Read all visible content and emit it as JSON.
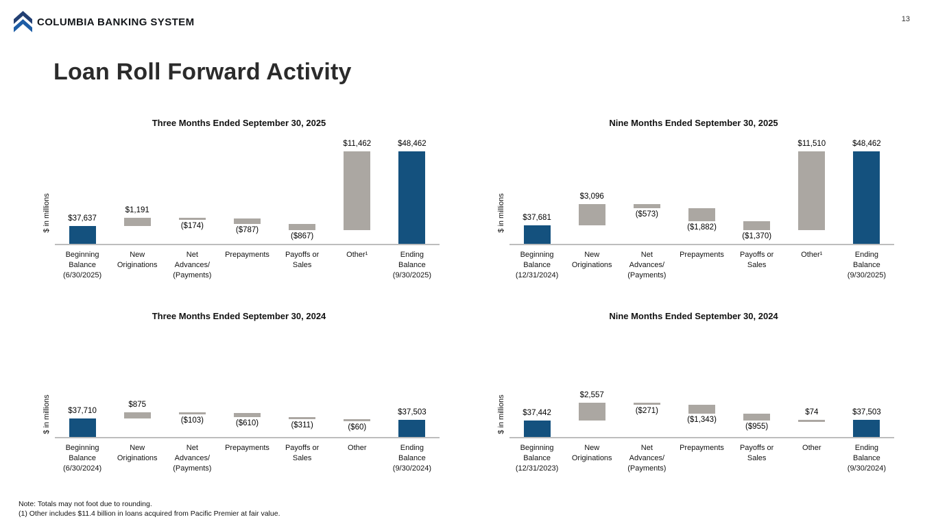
{
  "header": {
    "logo_text": "COLUMBIA BANKING SYSTEM",
    "page_number": "13"
  },
  "page_title": "Loan Roll Forward Activity",
  "colors": {
    "balance_bar": "#14517E",
    "flow_bar": "#ABA7A2",
    "axis_line": "#BDBDBD",
    "logo_top_chevron": "#223F73",
    "logo_bottom_chevron": "#1D5DA6"
  },
  "footnotes": {
    "line1": "Note: Totals may not foot due to rounding.",
    "line2": "(1)  Other includes $11.4 billion in loans acquired from Pacific Premier at fair value."
  },
  "chart_data": [
    {
      "type": "bar",
      "subtype": "waterfall",
      "title": "Three Months Ended September 30, 2025",
      "xlabel": "",
      "ylabel": "$ in millions",
      "ylim": [
        35000,
        49500
      ],
      "grid": false,
      "legend": "none",
      "categories": [
        "Beginning\nBalance\n(6/30/2025)",
        "New\nOriginations",
        "Net\nAdvances/\n(Payments)",
        "Prepayments",
        "Payoffs or\nSales",
        "Other¹",
        "Ending\nBalance\n(9/30/2025)"
      ],
      "values": [
        37637,
        1191,
        -174,
        -787,
        -867,
        11462,
        48462
      ],
      "kinds": [
        "total",
        "delta",
        "delta",
        "delta",
        "delta",
        "delta",
        "total"
      ],
      "value_labels": [
        "$37,637",
        "$1,191",
        "($174)",
        "($787)",
        "($867)",
        "$11,462",
        "$48,462"
      ]
    },
    {
      "type": "bar",
      "subtype": "waterfall",
      "title": "Nine Months Ended September 30, 2025",
      "xlabel": "",
      "ylabel": "$ in millions",
      "ylim": [
        35000,
        49500
      ],
      "grid": false,
      "legend": "none",
      "categories": [
        "Beginning\nBalance\n(12/31/2024)",
        "New\nOriginations",
        "Net\nAdvances/\n(Payments)",
        "Prepayments",
        "Payoffs or\nSales",
        "Other¹",
        "Ending\nBalance\n(9/30/2025)"
      ],
      "values": [
        37681,
        3096,
        -573,
        -1882,
        -1370,
        11510,
        48462
      ],
      "kinds": [
        "total",
        "delta",
        "delta",
        "delta",
        "delta",
        "delta",
        "total"
      ],
      "value_labels": [
        "$37,681",
        "$3,096",
        "($573)",
        "($1,882)",
        "($1,370)",
        "$11,510",
        "$48,462"
      ]
    },
    {
      "type": "bar",
      "subtype": "waterfall",
      "title": "Three Months Ended September 30, 2024",
      "xlabel": "",
      "ylabel": "$ in millions",
      "ylim": [
        35000,
        47000
      ],
      "grid": false,
      "legend": "none",
      "categories": [
        "Beginning\nBalance\n(6/30/2024)",
        "New\nOriginations",
        "Net\nAdvances/\n(Payments)",
        "Prepayments",
        "Payoffs or\nSales",
        "Other",
        "Ending\nBalance\n(9/30/2024)"
      ],
      "values": [
        37710,
        875,
        -103,
        -610,
        -311,
        -60,
        37503
      ],
      "kinds": [
        "total",
        "delta",
        "delta",
        "delta",
        "delta",
        "delta",
        "total"
      ],
      "value_labels": [
        "$37,710",
        "$875",
        "($103)",
        "($610)",
        "($311)",
        "($60)",
        "$37,503"
      ]
    },
    {
      "type": "bar",
      "subtype": "waterfall",
      "title": "Nine Months Ended September 30, 2024",
      "xlabel": "",
      "ylabel": "$ in millions",
      "ylim": [
        35000,
        47000
      ],
      "grid": false,
      "legend": "none",
      "categories": [
        "Beginning\nBalance\n(12/31/2023)",
        "New\nOriginations",
        "Net\nAdvances/\n(Payments)",
        "Prepayments",
        "Payoffs or\nSales",
        "Other",
        "Ending\nBalance\n(9/30/2024)"
      ],
      "values": [
        37442,
        2557,
        -271,
        -1343,
        -955,
        74,
        37503
      ],
      "kinds": [
        "total",
        "delta",
        "delta",
        "delta",
        "delta",
        "delta",
        "total"
      ],
      "value_labels": [
        "$37,442",
        "$2,557",
        "($271)",
        "($1,343)",
        "($955)",
        "$74",
        "$37,503"
      ]
    }
  ]
}
